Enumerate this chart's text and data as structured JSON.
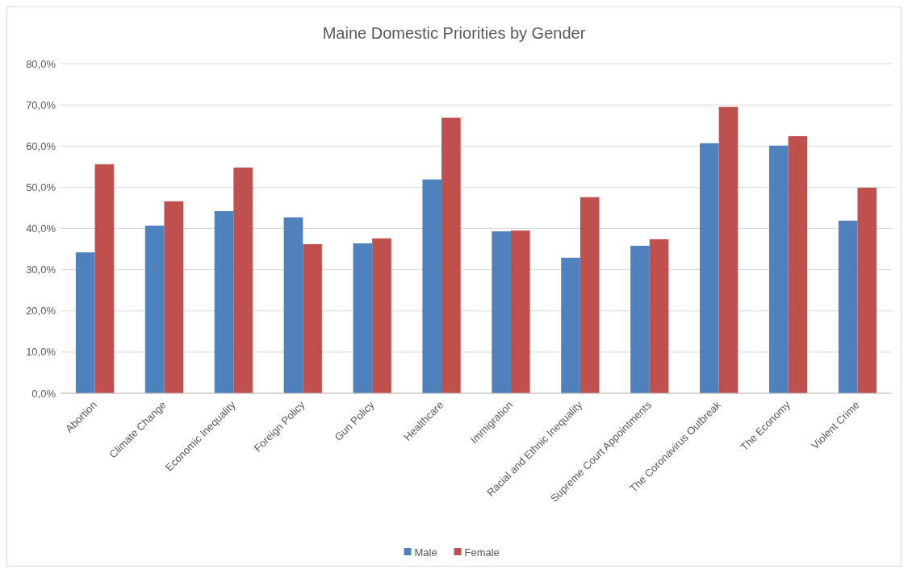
{
  "chart_data": {
    "type": "bar",
    "title": "Maine Domestic Priorities by Gender",
    "categories": [
      "Abortion",
      "Climate Change",
      "Economic Inequality",
      "Foreign Policy",
      "Gun Policy",
      "Healthcare",
      "Immigration",
      "Racial and Ethnic Inequality",
      "Supreme Court Appointments",
      "The Coronavirus Outbreak",
      "The Economy",
      "Violent Crime"
    ],
    "series": [
      {
        "name": "Male",
        "color": "#4f81bd",
        "values": [
          34.2,
          40.7,
          44.2,
          42.7,
          36.4,
          51.9,
          39.3,
          32.9,
          35.8,
          60.7,
          60.1,
          41.9
        ]
      },
      {
        "name": "Female",
        "color": "#c0504d",
        "values": [
          55.6,
          46.6,
          54.8,
          36.2,
          37.6,
          66.9,
          39.5,
          47.6,
          37.4,
          69.5,
          62.4,
          49.9
        ]
      }
    ],
    "ylim": [
      0,
      80
    ],
    "yticks": [
      {
        "value": 0,
        "label": "0,0%"
      },
      {
        "value": 10,
        "label": "10,0%"
      },
      {
        "value": 20,
        "label": "20,0%"
      },
      {
        "value": 30,
        "label": "30,0%"
      },
      {
        "value": 40,
        "label": "40,0%"
      },
      {
        "value": 50,
        "label": "50,0%"
      },
      {
        "value": 60,
        "label": "60,0%"
      },
      {
        "value": 70,
        "label": "70,0%"
      },
      {
        "value": 80,
        "label": "80,0%"
      }
    ],
    "grid": "y",
    "legend": "bottom"
  }
}
